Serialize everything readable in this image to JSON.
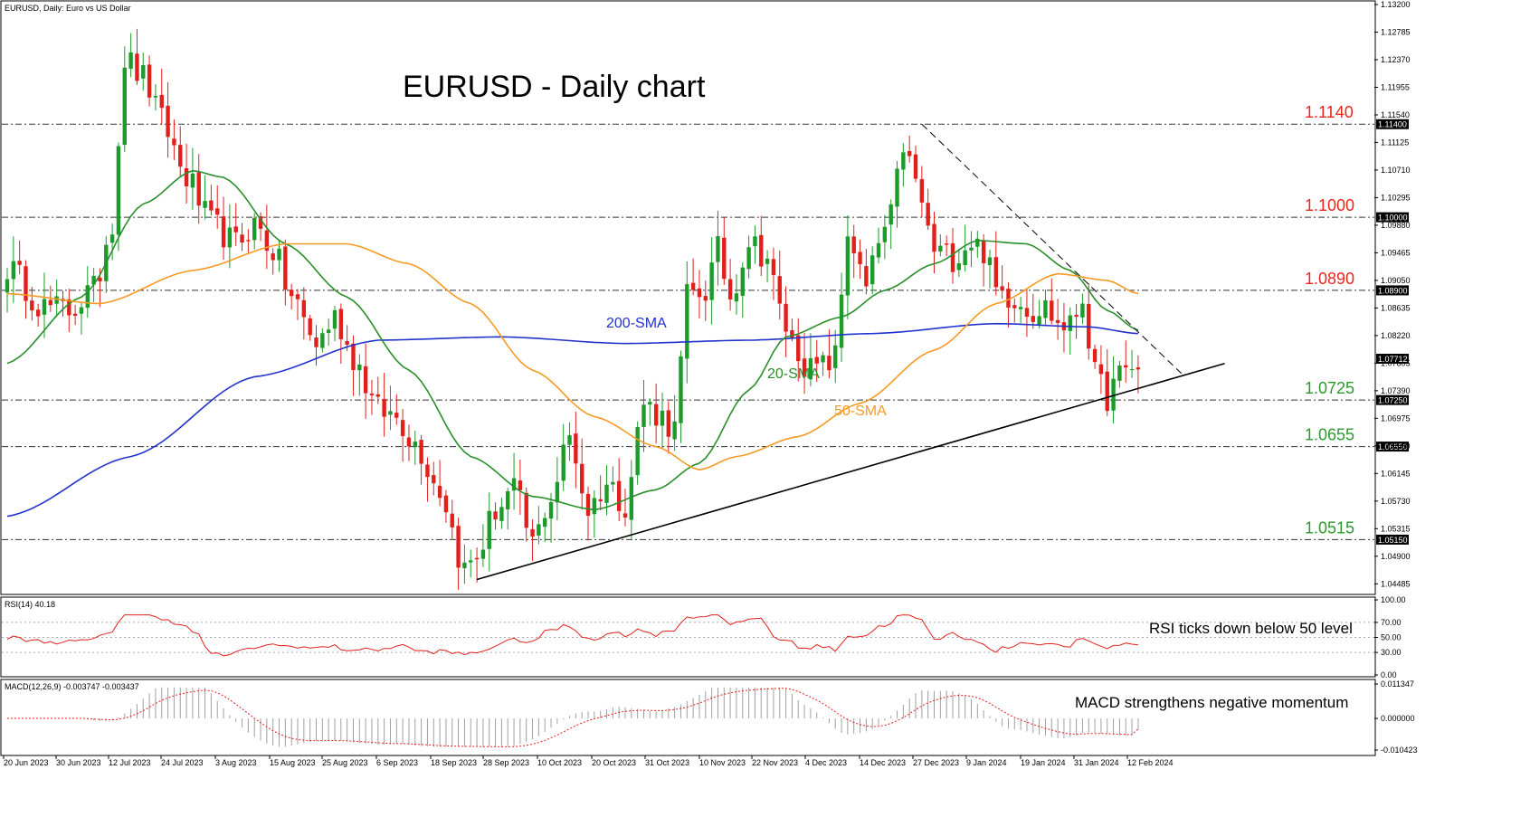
{
  "header": {
    "symbol_line": "EURUSD, Daily:  Euro vs US Dollar",
    "title": "EURUSD - Daily chart"
  },
  "price_axis": {
    "ticks": [
      "1.13200",
      "1.12785",
      "1.12370",
      "1.11955",
      "1.11540",
      "1.11125",
      "1.10710",
      "1.10295",
      "1.09880",
      "1.09465",
      "1.09050",
      "1.08635",
      "1.08220",
      "1.07805",
      "1.07390",
      "1.06975",
      "1.06560",
      "1.06145",
      "1.05730",
      "1.05315",
      "1.04900",
      "1.04485"
    ],
    "current_price": "1.07712"
  },
  "levels": [
    {
      "label": "1.1140",
      "box": "1.11400",
      "value": 1.114,
      "color": "#e8261c"
    },
    {
      "label": "1.1000",
      "box": "1.10000",
      "value": 1.1,
      "color": "#e8261c"
    },
    {
      "label": "1.0890",
      "box": "1.08900",
      "value": 1.089,
      "color": "#e8261c"
    },
    {
      "label": "1.0725",
      "box": "1.07250",
      "value": 1.0725,
      "color": "#2b9a2b"
    },
    {
      "label": "1.0655",
      "box": "1.06550",
      "value": 1.0655,
      "color": "#2b9a2b"
    },
    {
      "label": "1.0515",
      "box": "1.05150",
      "value": 1.0515,
      "color": "#2b9a2b"
    }
  ],
  "annotations": {
    "sma200": "200-SMA",
    "sma20": "20-SMA",
    "sma50": "50-SMA"
  },
  "colors": {
    "bull": "#1c9a2a",
    "bear": "#e1201c",
    "sma20": "#2a8f2a",
    "sma50": "#f59a23",
    "sma200": "#2233cc",
    "rsi": "#e1201c",
    "macd_signal": "#e1201c",
    "macd_hist": "#a0a0a0"
  },
  "rsi": {
    "header": "RSI(14) 40.18",
    "note": "RSI ticks down below 50 level",
    "ticks": [
      "100.00",
      "70.00",
      "50.00",
      "30.00",
      "0.00"
    ]
  },
  "macd": {
    "header": "MACD(12,26,9) -0.003747 -0.003437",
    "note": "MACD strengthens negative momentum",
    "ticks": [
      "0.011347",
      "0.000000",
      "-0.010423"
    ]
  },
  "date_axis": [
    "20 Jun 2023",
    "30 Jun 2023",
    "12 Jul 2023",
    "24 Jul 2023",
    "3 Aug 2023",
    "15 Aug 2023",
    "25 Aug 2023",
    "6 Sep 2023",
    "18 Sep 2023",
    "28 Sep 2023",
    "10 Oct 2023",
    "20 Oct 2023",
    "31 Oct 2023",
    "10 Nov 2023",
    "22 Nov 2023",
    "4 Dec 2023",
    "14 Dec 2023",
    "27 Dec 2023",
    "9 Jan 2024",
    "19 Jan 2024",
    "31 Jan 2024",
    "12 Feb 2024"
  ],
  "chart_data": {
    "type": "candlestick",
    "title": "EURUSD - Daily chart",
    "x_range": [
      "20 Jun 2023",
      "12 Feb 2024"
    ],
    "ylim": [
      1.0438,
      1.132
    ],
    "close_path": [
      {
        "i": 0,
        "c": 1.0925
      },
      {
        "i": 6,
        "c": 1.0865
      },
      {
        "i": 10,
        "c": 1.086
      },
      {
        "i": 14,
        "c": 1.089
      },
      {
        "i": 17,
        "c": 1.0995
      },
      {
        "i": 19,
        "c": 1.124
      },
      {
        "i": 22,
        "c": 1.121
      },
      {
        "i": 25,
        "c": 1.1145
      },
      {
        "i": 29,
        "c": 1.106
      },
      {
        "i": 33,
        "c": 1.099
      },
      {
        "i": 37,
        "c": 1.096
      },
      {
        "i": 40,
        "c": 1.099
      },
      {
        "i": 43,
        "c": 1.095
      },
      {
        "i": 46,
        "c": 1.088
      },
      {
        "i": 50,
        "c": 1.081
      },
      {
        "i": 53,
        "c": 1.085
      },
      {
        "i": 56,
        "c": 1.079
      },
      {
        "i": 60,
        "c": 1.071
      },
      {
        "i": 63,
        "c": 1.07
      },
      {
        "i": 66,
        "c": 1.066
      },
      {
        "i": 70,
        "c": 1.059
      },
      {
        "i": 74,
        "c": 1.047
      },
      {
        "i": 76,
        "c": 1.049
      },
      {
        "i": 79,
        "c": 1.056
      },
      {
        "i": 82,
        "c": 1.059
      },
      {
        "i": 85,
        "c": 1.051
      },
      {
        "i": 88,
        "c": 1.058
      },
      {
        "i": 91,
        "c": 1.067
      },
      {
        "i": 94,
        "c": 1.056
      },
      {
        "i": 97,
        "c": 1.06
      },
      {
        "i": 100,
        "c": 1.057
      },
      {
        "i": 103,
        "c": 1.072
      },
      {
        "i": 106,
        "c": 1.07
      },
      {
        "i": 108,
        "c": 1.068
      },
      {
        "i": 110,
        "c": 1.088
      },
      {
        "i": 113,
        "c": 1.089
      },
      {
        "i": 115,
        "c": 1.095
      },
      {
        "i": 117,
        "c": 1.088
      },
      {
        "i": 120,
        "c": 1.0965
      },
      {
        "i": 123,
        "c": 1.094
      },
      {
        "i": 125,
        "c": 1.086
      },
      {
        "i": 127,
        "c": 1.081
      },
      {
        "i": 130,
        "c": 1.077
      },
      {
        "i": 132,
        "c": 1.0775
      },
      {
        "i": 134,
        "c": 1.079
      },
      {
        "i": 136,
        "c": 1.098
      },
      {
        "i": 139,
        "c": 1.089
      },
      {
        "i": 141,
        "c": 1.096
      },
      {
        "i": 143,
        "c": 1.1
      },
      {
        "i": 145,
        "c": 1.111
      },
      {
        "i": 147,
        "c": 1.105
      },
      {
        "i": 150,
        "c": 1.095
      },
      {
        "i": 153,
        "c": 1.094
      },
      {
        "i": 156,
        "c": 1.0965
      },
      {
        "i": 158,
        "c": 1.095
      },
      {
        "i": 160,
        "c": 1.089
      },
      {
        "i": 163,
        "c": 1.088
      },
      {
        "i": 166,
        "c": 1.086
      },
      {
        "i": 168,
        "c": 1.0865
      },
      {
        "i": 170,
        "c": 1.084
      },
      {
        "i": 172,
        "c": 1.0835
      },
      {
        "i": 174,
        "c": 1.088
      },
      {
        "i": 176,
        "c": 1.076
      },
      {
        "i": 178,
        "c": 1.073
      },
      {
        "i": 180,
        "c": 1.076
      },
      {
        "i": 182,
        "c": 1.0775
      },
      {
        "i": 183,
        "c": 1.0771
      }
    ],
    "indicators": [
      {
        "name": "200-SMA",
        "points": [
          {
            "i": 0,
            "v": 1.055
          },
          {
            "i": 20,
            "v": 1.064
          },
          {
            "i": 40,
            "v": 1.076
          },
          {
            "i": 60,
            "v": 1.0815
          },
          {
            "i": 80,
            "v": 1.082
          },
          {
            "i": 100,
            "v": 1.081
          },
          {
            "i": 120,
            "v": 1.0815
          },
          {
            "i": 140,
            "v": 1.0825
          },
          {
            "i": 160,
            "v": 1.084
          },
          {
            "i": 175,
            "v": 1.0835
          },
          {
            "i": 183,
            "v": 1.0825
          }
        ]
      },
      {
        "name": "20-SMA",
        "points": [
          {
            "i": 0,
            "v": 1.078
          },
          {
            "i": 12,
            "v": 1.088
          },
          {
            "i": 22,
            "v": 1.102
          },
          {
            "i": 30,
            "v": 1.107
          },
          {
            "i": 35,
            "v": 1.106
          },
          {
            "i": 45,
            "v": 1.096
          },
          {
            "i": 55,
            "v": 1.088
          },
          {
            "i": 65,
            "v": 1.077
          },
          {
            "i": 75,
            "v": 1.064
          },
          {
            "i": 85,
            "v": 1.058
          },
          {
            "i": 95,
            "v": 1.056
          },
          {
            "i": 105,
            "v": 1.059
          },
          {
            "i": 112,
            "v": 1.063
          },
          {
            "i": 120,
            "v": 1.074
          },
          {
            "i": 126,
            "v": 1.082
          },
          {
            "i": 135,
            "v": 1.085
          },
          {
            "i": 142,
            "v": 1.089
          },
          {
            "i": 150,
            "v": 1.093
          },
          {
            "i": 157,
            "v": 1.0965
          },
          {
            "i": 165,
            "v": 1.096
          },
          {
            "i": 172,
            "v": 1.092
          },
          {
            "i": 178,
            "v": 1.086
          },
          {
            "i": 183,
            "v": 1.083
          }
        ]
      },
      {
        "name": "50-SMA",
        "points": [
          {
            "i": 0,
            "v": 1.0885
          },
          {
            "i": 15,
            "v": 1.087
          },
          {
            "i": 30,
            "v": 1.092
          },
          {
            "i": 45,
            "v": 1.096
          },
          {
            "i": 55,
            "v": 1.096
          },
          {
            "i": 65,
            "v": 1.093
          },
          {
            "i": 75,
            "v": 1.087
          },
          {
            "i": 85,
            "v": 1.077
          },
          {
            "i": 95,
            "v": 1.07
          },
          {
            "i": 105,
            "v": 1.0655
          },
          {
            "i": 112,
            "v": 1.062
          },
          {
            "i": 118,
            "v": 1.064
          },
          {
            "i": 128,
            "v": 1.067
          },
          {
            "i": 138,
            "v": 1.072
          },
          {
            "i": 150,
            "v": 1.08
          },
          {
            "i": 160,
            "v": 1.087
          },
          {
            "i": 170,
            "v": 1.0915
          },
          {
            "i": 178,
            "v": 1.0905
          },
          {
            "i": 183,
            "v": 1.0885
          }
        ]
      }
    ],
    "trendlines": [
      {
        "kind": "support",
        "from": {
          "i": 76,
          "v": 1.0455
        },
        "to": {
          "i": 197,
          "v": 1.078
        }
      },
      {
        "kind": "resistance",
        "from": {
          "i": 148,
          "v": 1.114
        },
        "to": {
          "i": 190,
          "v": 1.0765
        }
      }
    ],
    "rsi_last": 40.18,
    "rsi_levels": [
      70,
      50,
      30
    ],
    "macd_main": -0.003747,
    "macd_signal": -0.003437,
    "macd_ylim": [
      -0.010423,
      0.011347
    ]
  }
}
